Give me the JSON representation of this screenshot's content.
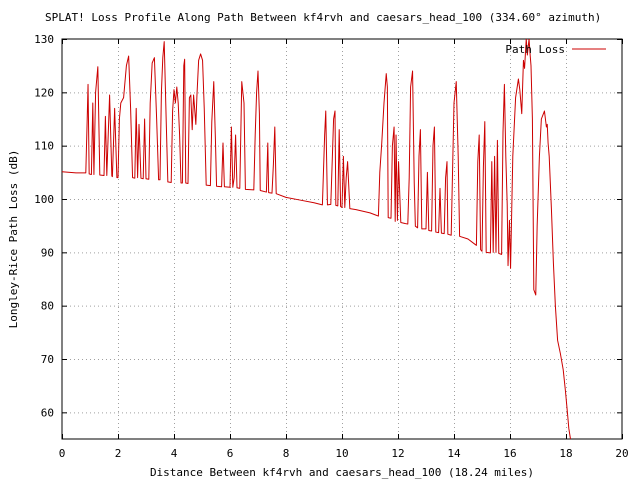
{
  "chart_data": {
    "type": "line",
    "title": "SPLAT! Loss Profile Along Path Between kf4rvh and caesars_head_100 (334.60° azimuth)",
    "xlabel": "Distance Between kf4rvh and caesars_head_100 (18.24 miles)",
    "ylabel": "Longley-Rice Path Loss (dB)",
    "xlim": [
      0,
      20
    ],
    "ylim": [
      55,
      130
    ],
    "x_ticks": [
      0,
      2,
      4,
      6,
      8,
      10,
      12,
      14,
      16,
      18,
      20
    ],
    "y_ticks": [
      60,
      70,
      80,
      90,
      100,
      110,
      120,
      130
    ],
    "x_tick_labels": [
      "0",
      "2",
      "4",
      "6",
      "8",
      "10",
      "12",
      "14",
      "16",
      "18",
      "20"
    ],
    "y_tick_labels": [
      "60",
      "70",
      "80",
      "90",
      "100",
      "110",
      "120",
      "130"
    ],
    "grid": true,
    "legend_position": "top-right",
    "series": [
      {
        "name": "Path Loss",
        "color": "#cc0000",
        "points": [
          [
            0.0,
            105.1
          ],
          [
            0.5,
            104.9
          ],
          [
            0.85,
            104.9
          ],
          [
            0.9,
            115.0
          ],
          [
            0.93,
            121.5
          ],
          [
            0.97,
            104.7
          ],
          [
            1.05,
            104.6
          ],
          [
            1.1,
            118.0
          ],
          [
            1.14,
            104.6
          ],
          [
            1.2,
            120.0
          ],
          [
            1.28,
            124.8
          ],
          [
            1.35,
            104.5
          ],
          [
            1.5,
            104.4
          ],
          [
            1.55,
            115.5
          ],
          [
            1.6,
            104.4
          ],
          [
            1.7,
            119.5
          ],
          [
            1.78,
            104.3
          ],
          [
            1.8,
            104.2
          ],
          [
            1.88,
            117.0
          ],
          [
            1.96,
            104.0
          ],
          [
            2.0,
            104.0
          ],
          [
            2.05,
            115.0
          ],
          [
            2.1,
            118.0
          ],
          [
            2.2,
            119.0
          ],
          [
            2.3,
            125.0
          ],
          [
            2.38,
            126.8
          ],
          [
            2.45,
            117.0
          ],
          [
            2.52,
            104.0
          ],
          [
            2.6,
            103.9
          ],
          [
            2.65,
            117.0
          ],
          [
            2.7,
            104.0
          ],
          [
            2.75,
            114.0
          ],
          [
            2.82,
            103.9
          ],
          [
            2.9,
            103.8
          ],
          [
            2.95,
            115.0
          ],
          [
            3.0,
            103.8
          ],
          [
            3.1,
            103.7
          ],
          [
            3.15,
            118.0
          ],
          [
            3.22,
            125.5
          ],
          [
            3.3,
            126.5
          ],
          [
            3.38,
            115.0
          ],
          [
            3.45,
            103.6
          ],
          [
            3.5,
            103.6
          ],
          [
            3.55,
            120.0
          ],
          [
            3.6,
            126.5
          ],
          [
            3.65,
            129.5
          ],
          [
            3.72,
            115.0
          ],
          [
            3.78,
            103.2
          ],
          [
            3.9,
            103.1
          ],
          [
            3.95,
            116.5
          ],
          [
            4.0,
            120.5
          ],
          [
            4.05,
            118.0
          ],
          [
            4.1,
            121.0
          ],
          [
            4.15,
            118.0
          ],
          [
            4.2,
            112.0
          ],
          [
            4.25,
            103.0
          ],
          [
            4.3,
            103.0
          ],
          [
            4.35,
            125.0
          ],
          [
            4.38,
            126.2
          ],
          [
            4.42,
            103.0
          ],
          [
            4.5,
            102.9
          ],
          [
            4.55,
            119.0
          ],
          [
            4.6,
            119.5
          ],
          [
            4.65,
            113.0
          ],
          [
            4.7,
            119.5
          ],
          [
            4.78,
            114.0
          ],
          [
            4.82,
            119.5
          ],
          [
            4.88,
            126.0
          ],
          [
            4.95,
            127.2
          ],
          [
            5.02,
            126.0
          ],
          [
            5.08,
            117.0
          ],
          [
            5.15,
            102.6
          ],
          [
            5.3,
            102.5
          ],
          [
            5.35,
            114.5
          ],
          [
            5.42,
            122.0
          ],
          [
            5.48,
            111.0
          ],
          [
            5.52,
            102.4
          ],
          [
            5.7,
            102.3
          ],
          [
            5.75,
            110.5
          ],
          [
            5.8,
            102.3
          ],
          [
            6.0,
            102.2
          ],
          [
            6.05,
            113.5
          ],
          [
            6.1,
            102.2
          ],
          [
            6.15,
            104.0
          ],
          [
            6.2,
            112.0
          ],
          [
            6.25,
            102.1
          ],
          [
            6.35,
            102.0
          ],
          [
            6.42,
            122.0
          ],
          [
            6.5,
            118.0
          ],
          [
            6.55,
            101.8
          ],
          [
            6.85,
            101.7
          ],
          [
            6.9,
            112.0
          ],
          [
            6.95,
            120.0
          ],
          [
            7.0,
            124.0
          ],
          [
            7.05,
            116.0
          ],
          [
            7.08,
            101.6
          ],
          [
            7.3,
            101.3
          ],
          [
            7.35,
            110.5
          ],
          [
            7.38,
            101.2
          ],
          [
            7.5,
            101.1
          ],
          [
            7.55,
            106.5
          ],
          [
            7.6,
            113.5
          ],
          [
            7.65,
            101.0
          ],
          [
            8.0,
            100.3
          ],
          [
            8.5,
            99.8
          ],
          [
            9.0,
            99.3
          ],
          [
            9.3,
            98.9
          ],
          [
            9.38,
            112.0
          ],
          [
            9.42,
            116.5
          ],
          [
            9.48,
            98.9
          ],
          [
            9.6,
            99.0
          ],
          [
            9.7,
            115.0
          ],
          [
            9.75,
            116.5
          ],
          [
            9.78,
            98.8
          ],
          [
            9.85,
            98.7
          ],
          [
            9.9,
            113.0
          ],
          [
            9.95,
            98.6
          ],
          [
            10.0,
            98.4
          ],
          [
            10.05,
            108.0
          ],
          [
            10.1,
            98.4
          ],
          [
            10.15,
            104.0
          ],
          [
            10.2,
            107.0
          ],
          [
            10.28,
            98.2
          ],
          [
            10.5,
            98.0
          ],
          [
            11.0,
            97.4
          ],
          [
            11.2,
            97.0
          ],
          [
            11.3,
            96.8
          ],
          [
            11.35,
            105.0
          ],
          [
            11.42,
            110.5
          ],
          [
            11.5,
            118.0
          ],
          [
            11.58,
            123.5
          ],
          [
            11.62,
            121.0
          ],
          [
            11.65,
            96.5
          ],
          [
            11.75,
            96.4
          ],
          [
            11.8,
            110.0
          ],
          [
            11.86,
            113.5
          ],
          [
            11.9,
            95.8
          ],
          [
            11.93,
            112.0
          ],
          [
            11.98,
            96.0
          ],
          [
            12.02,
            107.0
          ],
          [
            12.1,
            95.6
          ],
          [
            12.25,
            95.4
          ],
          [
            12.35,
            95.3
          ],
          [
            12.4,
            104.0
          ],
          [
            12.45,
            121.0
          ],
          [
            12.52,
            124.0
          ],
          [
            12.58,
            103.0
          ],
          [
            12.62,
            94.9
          ],
          [
            12.7,
            94.6
          ],
          [
            12.75,
            108.0
          ],
          [
            12.8,
            113.0
          ],
          [
            12.85,
            94.4
          ],
          [
            13.0,
            94.4
          ],
          [
            13.05,
            105.0
          ],
          [
            13.1,
            94.1
          ],
          [
            13.2,
            94.0
          ],
          [
            13.25,
            110.0
          ],
          [
            13.3,
            113.5
          ],
          [
            13.35,
            93.8
          ],
          [
            13.45,
            93.7
          ],
          [
            13.5,
            102.0
          ],
          [
            13.55,
            93.6
          ],
          [
            13.65,
            93.5
          ],
          [
            13.7,
            104.0
          ],
          [
            13.75,
            107.0
          ],
          [
            13.78,
            93.4
          ],
          [
            13.9,
            93.2
          ],
          [
            14.0,
            118.0
          ],
          [
            14.08,
            122.0
          ],
          [
            14.15,
            108.0
          ],
          [
            14.2,
            93.0
          ],
          [
            14.5,
            92.5
          ],
          [
            14.75,
            91.5
          ],
          [
            14.8,
            91.3
          ],
          [
            14.85,
            107.0
          ],
          [
            14.9,
            112.0
          ],
          [
            14.95,
            90.5
          ],
          [
            15.0,
            90.2
          ],
          [
            15.05,
            106.0
          ],
          [
            15.1,
            114.5
          ],
          [
            15.15,
            90.0
          ],
          [
            15.3,
            89.9
          ],
          [
            15.35,
            107.0
          ],
          [
            15.4,
            90.0
          ],
          [
            15.45,
            108.0
          ],
          [
            15.5,
            90.0
          ],
          [
            15.55,
            111.0
          ],
          [
            15.6,
            89.8
          ],
          [
            15.7,
            89.6
          ],
          [
            15.75,
            112.5
          ],
          [
            15.8,
            121.5
          ],
          [
            15.85,
            108.0
          ],
          [
            15.9,
            99.0
          ],
          [
            15.93,
            87.5
          ],
          [
            15.98,
            96.0
          ],
          [
            16.02,
            87.0
          ],
          [
            16.1,
            108.0
          ],
          [
            16.2,
            119.0
          ],
          [
            16.3,
            122.5
          ],
          [
            16.35,
            120.5
          ],
          [
            16.42,
            116.0
          ],
          [
            16.48,
            126.0
          ],
          [
            16.52,
            124.5
          ],
          [
            16.58,
            130.0
          ],
          [
            16.62,
            127.0
          ],
          [
            16.68,
            130.0
          ],
          [
            16.72,
            127.0
          ],
          [
            16.75,
            125.0
          ],
          [
            16.8,
            115.0
          ],
          [
            16.85,
            83.0
          ],
          [
            16.92,
            82.0
          ],
          [
            16.97,
            95.0
          ],
          [
            17.05,
            108.0
          ],
          [
            17.12,
            115.0
          ],
          [
            17.18,
            115.8
          ],
          [
            17.23,
            116.5
          ],
          [
            17.3,
            113.5
          ],
          [
            17.33,
            114.0
          ],
          [
            17.36,
            110.5
          ],
          [
            17.4,
            108.0
          ],
          [
            17.48,
            98.0
          ],
          [
            17.55,
            88.0
          ],
          [
            17.62,
            80.0
          ],
          [
            17.7,
            73.5
          ],
          [
            17.8,
            71.0
          ],
          [
            17.9,
            68.0
          ],
          [
            17.98,
            64.0
          ],
          [
            18.05,
            60.0
          ],
          [
            18.1,
            57.0
          ],
          [
            18.16,
            55.0
          ]
        ]
      }
    ]
  }
}
